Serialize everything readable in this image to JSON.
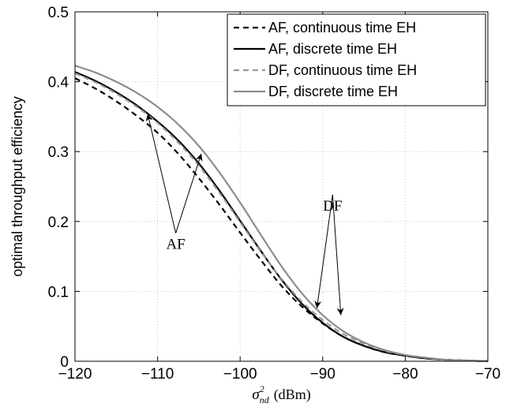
{
  "chart_data": {
    "type": "line",
    "xlabel": {
      "symbol": "σ",
      "superscript": "2",
      "subscript": "n_d",
      "unit": "(dBm)"
    },
    "ylabel": "optimal throughput efficiency",
    "xlim": [
      -120,
      -70
    ],
    "ylim": [
      0,
      0.5
    ],
    "xticks": [
      -120,
      -110,
      -100,
      -90,
      -80,
      -70
    ],
    "xtick_labels": [
      "−120",
      "−110",
      "−100",
      "−90",
      "−80",
      "−70"
    ],
    "yticks": [
      0,
      0.1,
      0.2,
      0.3,
      0.4,
      0.5
    ],
    "ytick_labels": [
      "0",
      "0.1",
      "0.2",
      "0.3",
      "0.4",
      "0.5"
    ],
    "grid": true,
    "legend_position": "top-right",
    "series": [
      {
        "name": "AF, continuous time EH",
        "color": "#000000",
        "dash": "dashed",
        "x": [
          -120,
          -117.5,
          -115,
          -112.5,
          -110,
          -107.5,
          -105,
          -102.5,
          -100,
          -97.5,
          -95,
          -92.5,
          -90,
          -87.5,
          -85,
          -82.5,
          -80,
          -77.5,
          -75,
          -72.5,
          -70
        ],
        "y": [
          0.405,
          0.39,
          0.372,
          0.351,
          0.327,
          0.297,
          0.262,
          0.224,
          0.184,
          0.145,
          0.108,
          0.078,
          0.054,
          0.035,
          0.022,
          0.013,
          0.008,
          0.004,
          0.002,
          0.001,
          0.0
        ]
      },
      {
        "name": "AF, discrete time EH",
        "color": "#000000",
        "dash": "solid",
        "x": [
          -120,
          -117.5,
          -115,
          -112.5,
          -110,
          -107.5,
          -105,
          -102.5,
          -100,
          -97.5,
          -95,
          -92.5,
          -90,
          -87.5,
          -85,
          -82.5,
          -80,
          -77.5,
          -75,
          -72.5,
          -70
        ],
        "y": [
          0.414,
          0.401,
          0.385,
          0.366,
          0.343,
          0.316,
          0.283,
          0.244,
          0.201,
          0.158,
          0.117,
          0.082,
          0.055,
          0.035,
          0.022,
          0.013,
          0.008,
          0.004,
          0.002,
          0.001,
          0.0
        ]
      },
      {
        "name": "DF, continuous time EH",
        "color": "#999999",
        "dash": "dashed",
        "x": [
          -120,
          -117.5,
          -115,
          -112.5,
          -110,
          -107.5,
          -105,
          -102.5,
          -100,
          -97.5,
          -95,
          -92.5,
          -90,
          -87.5,
          -85,
          -82.5,
          -80,
          -77.5,
          -75,
          -72.5,
          -70
        ],
        "y": [
          0.412,
          0.399,
          0.383,
          0.364,
          0.341,
          0.313,
          0.28,
          0.241,
          0.199,
          0.157,
          0.118,
          0.085,
          0.059,
          0.039,
          0.025,
          0.015,
          0.009,
          0.005,
          0.002,
          0.001,
          0.0
        ]
      },
      {
        "name": "DF, discrete time EH",
        "color": "#8c8c8c",
        "dash": "solid",
        "x": [
          -120,
          -117.5,
          -115,
          -112.5,
          -110,
          -107.5,
          -105,
          -102.5,
          -100,
          -97.5,
          -95,
          -92.5,
          -90,
          -87.5,
          -85,
          -82.5,
          -80,
          -77.5,
          -75,
          -72.5,
          -70
        ],
        "y": [
          0.423,
          0.413,
          0.4,
          0.384,
          0.364,
          0.339,
          0.308,
          0.27,
          0.227,
          0.181,
          0.136,
          0.097,
          0.066,
          0.043,
          0.027,
          0.016,
          0.009,
          0.005,
          0.002,
          0.001,
          0.0
        ]
      }
    ],
    "annotations": [
      {
        "text": "AF",
        "label_at": [
          -107.8,
          0.163
        ],
        "arrows_to": [
          [
            -111.2,
            0.354
          ],
          [
            -104.7,
            0.297
          ]
        ]
      },
      {
        "text": "DF",
        "label_at": [
          -88.8,
          0.218
        ],
        "arrows_to": [
          [
            -90.7,
            0.076
          ],
          [
            -87.8,
            0.066
          ]
        ]
      }
    ]
  }
}
